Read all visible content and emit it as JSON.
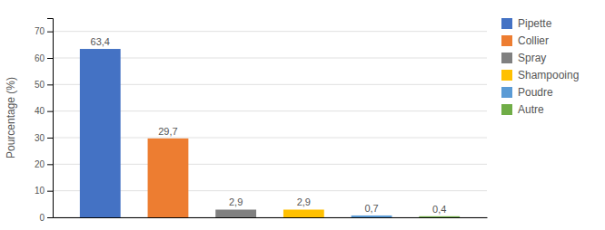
{
  "chart_data": {
    "type": "bar",
    "categories": [
      "Pipette",
      "Collier",
      "Spray",
      "Shampooing",
      "Poudre",
      "Autre"
    ],
    "values": [
      63.4,
      29.7,
      2.9,
      2.9,
      0.7,
      0.4
    ],
    "value_labels": [
      "63,4",
      "29,7",
      "2,9",
      "2,9",
      "0,7",
      "0,4"
    ],
    "colors": [
      "#4472C4",
      "#ED7D31",
      "#808080",
      "#FFC000",
      "#5B9BD5",
      "#70AD47"
    ],
    "ylabel": "Pourcentage (%)",
    "ylim": [
      0,
      75
    ],
    "yticks": [
      0,
      10,
      20,
      30,
      40,
      50,
      60,
      70
    ],
    "grid": true,
    "data_labels": true,
    "tick_labels": "y",
    "legend": "right"
  }
}
